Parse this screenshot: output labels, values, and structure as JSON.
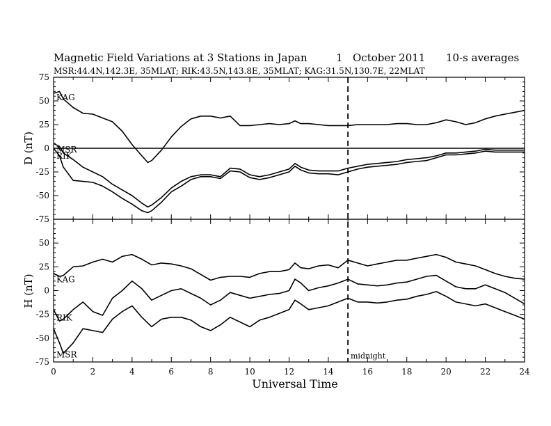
{
  "chart_data": {
    "type": "line",
    "title": "Magnetic Field Variations at 3 Stations in Japan",
    "date_day": "1",
    "date_month_year": "October 2011",
    "averaging": "10-s averages",
    "subtitle": "MSR:44.4N,142.3E, 35MLAT;  RIK:43.5N,143.8E, 35MLAT;  KAG:31.5N,130.7E, 22MLAT",
    "xlabel": "Universal Time",
    "xlim": [
      0,
      24
    ],
    "x_ticks": [
      "0",
      "2",
      "4",
      "6",
      "8",
      "10",
      "12",
      "14",
      "16",
      "18",
      "20",
      "22",
      "24"
    ],
    "midnight_ut": 15,
    "midnight_label": "midnight",
    "panels": [
      {
        "ylabel": "D (nT)",
        "ylim": [
          -75,
          75
        ],
        "y_ticks": [
          "75",
          "50",
          "25",
          "0",
          "-25",
          "-50",
          "-75"
        ],
        "zero_line": true,
        "x": [
          0,
          0.3,
          0.5,
          1,
          1.5,
          2,
          2.5,
          3,
          3.5,
          4,
          4.5,
          4.8,
          5,
          5.5,
          6,
          6.5,
          7,
          7.5,
          8,
          8.5,
          9,
          9.5,
          10,
          10.5,
          11,
          11.5,
          12,
          12.3,
          12.6,
          13,
          13.5,
          14,
          14.5,
          15,
          15.5,
          16,
          16.5,
          17,
          17.5,
          18,
          18.5,
          19,
          19.5,
          20,
          20.5,
          21,
          21.5,
          22,
          22.5,
          23,
          23.5,
          24
        ],
        "series": [
          {
            "name": "KAG",
            "values": [
              58,
              60,
              52,
              43,
              37,
              36,
              32,
              28,
              18,
              4,
              -8,
              -15,
              -13,
              -2,
              12,
              23,
              31,
              34,
              34,
              32,
              34,
              24,
              24,
              25,
              26,
              25,
              26,
              29,
              26,
              26,
              25,
              24,
              24,
              24,
              25,
              25,
              25,
              25,
              26,
              26,
              25,
              25,
              27,
              30,
              28,
              25,
              27,
              31,
              34,
              36,
              38,
              40
            ]
          },
          {
            "name": "MSR",
            "values": [
              5,
              2,
              -5,
              -12,
              -20,
              -25,
              -30,
              -38,
              -44,
              -50,
              -58,
              -62,
              -60,
              -52,
              -42,
              -35,
              -30,
              -28,
              -28,
              -30,
              -21,
              -22,
              -28,
              -30,
              -28,
              -25,
              -22,
              -16,
              -20,
              -23,
              -24,
              -24,
              -24,
              -21,
              -19,
              -17,
              -16,
              -15,
              -14,
              -12,
              -11,
              -10,
              -8,
              -5,
              -5,
              -4,
              -3,
              -1,
              -2,
              -2,
              -2,
              -2
            ]
          },
          {
            "name": "RIK",
            "values": [
              0,
              -8,
              -20,
              -34,
              -35,
              -36,
              -40,
              -46,
              -53,
              -59,
              -66,
              -68,
              -66,
              -57,
              -46,
              -40,
              -33,
              -30,
              -30,
              -32,
              -24,
              -25,
              -31,
              -33,
              -31,
              -28,
              -25,
              -19,
              -23,
              -26,
              -27,
              -27,
              -28,
              -25,
              -22,
              -20,
              -19,
              -18,
              -17,
              -15,
              -14,
              -13,
              -10,
              -7,
              -7,
              -6,
              -5,
              -3,
              -4,
              -4,
              -4,
              -4
            ]
          }
        ],
        "labels": [
          "KAG",
          "MSR",
          "RIK"
        ]
      },
      {
        "ylabel": "H (nT)",
        "ylim": [
          -75,
          75
        ],
        "y_ticks": [
          "50",
          "25",
          "0",
          "-25",
          "-50",
          "-75"
        ],
        "zero_line": false,
        "x": [
          0,
          0.3,
          0.5,
          1,
          1.5,
          2,
          2.5,
          3,
          3.5,
          4,
          4.5,
          5,
          5.5,
          6,
          6.5,
          7,
          7.5,
          8,
          8.5,
          9,
          9.5,
          10,
          10.5,
          11,
          11.5,
          12,
          12.3,
          12.6,
          13,
          13.5,
          14,
          14.5,
          15,
          15.5,
          16,
          16.5,
          17,
          17.5,
          18,
          18.5,
          19,
          19.5,
          20,
          20.5,
          21,
          21.5,
          22,
          22.5,
          23,
          23.5,
          24
        ],
        "series": [
          {
            "name": "KAG",
            "values": [
              18,
              15,
              16,
              25,
              26,
              30,
              33,
              30,
              36,
              38,
              33,
              27,
              29,
              28,
              26,
              23,
              17,
              11,
              14,
              15,
              15,
              14,
              18,
              20,
              20,
              22,
              29,
              24,
              23,
              26,
              27,
              24,
              32,
              29,
              26,
              28,
              30,
              32,
              32,
              34,
              36,
              38,
              35,
              30,
              28,
              26,
              22,
              18,
              15,
              13,
              12
            ]
          },
          {
            "name": "RIK",
            "values": [
              -20,
              -32,
              -30,
              -20,
              -12,
              -22,
              -26,
              -8,
              0,
              10,
              2,
              -10,
              -5,
              0,
              2,
              -3,
              -8,
              -15,
              -10,
              -2,
              -5,
              -8,
              -6,
              -4,
              -3,
              0,
              12,
              8,
              0,
              3,
              5,
              8,
              12,
              7,
              6,
              5,
              6,
              8,
              9,
              12,
              15,
              16,
              10,
              4,
              2,
              2,
              6,
              2,
              -2,
              -8,
              -14
            ]
          },
          {
            "name": "MSR",
            "values": [
              -40,
              -55,
              -66,
              -55,
              -40,
              -42,
              -44,
              -30,
              -22,
              -16,
              -28,
              -38,
              -30,
              -28,
              -28,
              -31,
              -38,
              -42,
              -36,
              -28,
              -33,
              -38,
              -31,
              -28,
              -24,
              -20,
              -10,
              -14,
              -20,
              -18,
              -16,
              -12,
              -8,
              -12,
              -12,
              -13,
              -12,
              -10,
              -9,
              -6,
              -4,
              -1,
              -6,
              -12,
              -14,
              -16,
              -14,
              -18,
              -22,
              -26,
              -30
            ]
          }
        ],
        "labels": [
          "KAG",
          "RIK",
          "MSR"
        ]
      }
    ]
  }
}
